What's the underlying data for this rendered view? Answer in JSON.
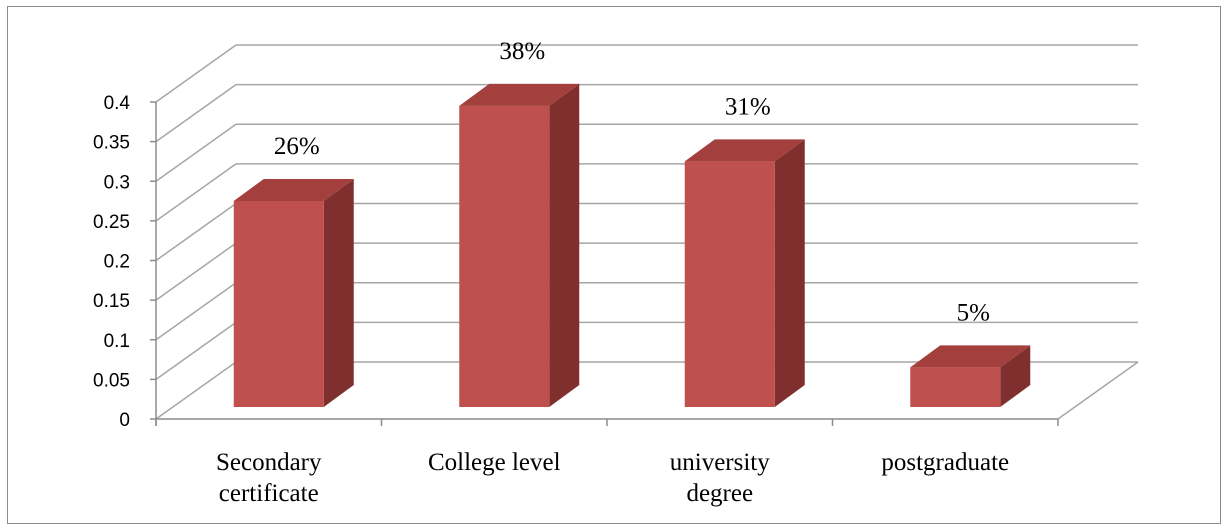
{
  "chart_data": {
    "type": "bar",
    "three_d": true,
    "categories": [
      [
        "Secondary",
        "certificate"
      ],
      [
        "College level"
      ],
      [
        "university",
        "degree"
      ],
      [
        "postgraduate"
      ]
    ],
    "values": [
      0.26,
      0.38,
      0.31,
      0.05
    ],
    "data_labels": [
      "26%",
      "38%",
      "31%",
      "5%"
    ],
    "y_ticks": [
      "0",
      "0.05",
      "0.1",
      "0.15",
      "0.2",
      "0.25",
      "0.3",
      "0.35",
      "0.4"
    ],
    "ylim": [
      0,
      0.4
    ],
    "grid": true,
    "legend": "none",
    "colors": {
      "bar_front": "#c0504d",
      "bar_top": "#a33f3c",
      "bar_side": "#7f302e",
      "grid": "#a6a6a6",
      "axis": "#8c8c8c"
    }
  }
}
